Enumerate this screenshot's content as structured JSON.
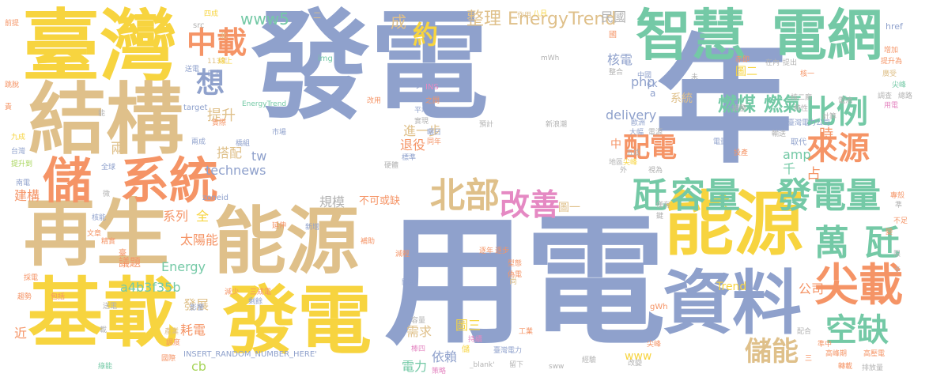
{
  "palette": {
    "blue": "#8fa1cc",
    "tan": "#dfc08a",
    "yellow": "#f7d43f",
    "orange": "#f59466",
    "green": "#74c9a6",
    "pink": "#e589c3",
    "lime": "#a7d55a",
    "grey": "#b2b2b2"
  },
  "words": [
    {
      "text": "發電",
      "color": "blue"
    },
    {
      "text": "年",
      "color": "blue"
    },
    {
      "text": "用電",
      "color": "blue"
    },
    {
      "text": "臺灣",
      "color": "yellow"
    },
    {
      "text": "結構",
      "color": "tan"
    },
    {
      "text": "再生",
      "color": "tan"
    },
    {
      "text": "能源",
      "color": "tan"
    },
    {
      "text": "基載",
      "color": "yellow"
    },
    {
      "text": "發電",
      "color": "yellow"
    },
    {
      "text": "能源",
      "color": "yellow"
    },
    {
      "text": "資料",
      "color": "blue"
    },
    {
      "text": "智慧",
      "color": "green"
    },
    {
      "text": "電網",
      "color": "green"
    },
    {
      "text": "系統",
      "color": "orange"
    },
    {
      "text": "儲",
      "color": "orange"
    },
    {
      "text": "中載",
      "color": "orange"
    },
    {
      "text": "想",
      "color": "blue"
    },
    {
      "text": "約",
      "color": "yellow"
    },
    {
      "text": "比例",
      "color": "green"
    },
    {
      "text": "來源",
      "color": "orange"
    },
    {
      "text": "配電",
      "color": "orange"
    },
    {
      "text": "燃煤",
      "color": "green"
    },
    {
      "text": "燃氣",
      "color": "green"
    },
    {
      "text": "北部",
      "color": "tan"
    },
    {
      "text": "改善",
      "color": "pink"
    },
    {
      "text": "容量",
      "color": "green"
    },
    {
      "text": "瓩",
      "color": "green"
    },
    {
      "text": "發電量",
      "color": "green"
    },
    {
      "text": "萬",
      "color": "green"
    },
    {
      "text": "瓩",
      "color": "green"
    },
    {
      "text": "尖載",
      "color": "orange"
    },
    {
      "text": "空缺",
      "color": "green"
    },
    {
      "text": "儲能",
      "color": "tan"
    },
    {
      "text": "整理",
      "color": "tan"
    },
    {
      "text": "EnergyTrend",
      "color": "tan"
    },
    {
      "text": "成",
      "color": "tan"
    },
    {
      "text": "www5",
      "color": "green"
    },
    {
      "text": "民國",
      "color": "grey"
    },
    {
      "text": "技術",
      "color": "grey"
    },
    {
      "text": "核電",
      "color": "blue"
    },
    {
      "text": "php",
      "color": "blue"
    },
    {
      "text": "delivery",
      "color": "blue"
    },
    {
      "text": "進一步",
      "color": "tan"
    },
    {
      "text": "中",
      "color": "orange"
    },
    {
      "text": "系統",
      "color": "tan"
    },
    {
      "text": "提升",
      "color": "tan"
    },
    {
      "text": "兩",
      "color": "tan"
    },
    {
      "text": "搭配",
      "color": "tan"
    },
    {
      "text": "tw",
      "color": "blue"
    },
    {
      "text": "technews",
      "color": "blue"
    },
    {
      "text": "退役",
      "color": "orange"
    },
    {
      "text": "規模",
      "color": "grey"
    },
    {
      "text": "不可或缺",
      "color": "orange"
    },
    {
      "text": "amp",
      "color": "green"
    },
    {
      "text": "千",
      "color": "green"
    },
    {
      "text": "占",
      "color": "orange"
    },
    {
      "text": "時",
      "color": "orange"
    },
    {
      "text": "建構",
      "color": "orange"
    },
    {
      "text": "系列",
      "color": "orange"
    },
    {
      "text": "全",
      "color": "yellow"
    },
    {
      "text": "太陽能",
      "color": "orange"
    },
    {
      "text": "Energy",
      "color": "green"
    },
    {
      "text": "a4b3f35b",
      "color": "green"
    },
    {
      "text": "發展",
      "color": "tan"
    },
    {
      "text": "耗電",
      "color": "orange"
    },
    {
      "text": "cb",
      "color": "lime"
    },
    {
      "text": "需求",
      "color": "tan"
    },
    {
      "text": "依賴",
      "color": "blue"
    },
    {
      "text": "圖三",
      "color": "yellow"
    },
    {
      "text": "電力",
      "color": "green"
    },
    {
      "text": "www",
      "color": "yellow"
    },
    {
      "text": "Trend",
      "color": "yellow"
    },
    {
      "text": "公司",
      "color": "orange"
    },
    {
      "text": "圖二",
      "color": "yellow"
    },
    {
      "text": "圖一",
      "color": "tan"
    },
    {
      "text": "議題",
      "color": "orange"
    },
    {
      "text": "INSERT_RANDOM_NUMBER_HERE'",
      "color": "blue"
    },
    {
      "text": "zoneid",
      "color": "blue"
    },
    {
      "text": "EnergyTrend",
      "color": "green"
    },
    {
      "text": "href",
      "color": "blue"
    },
    {
      "text": "ck",
      "color": "blue"
    },
    {
      "text": "a",
      "color": "blue"
    },
    {
      "text": "target",
      "color": "blue"
    },
    {
      "text": "img",
      "color": "green"
    },
    {
      "text": "INS",
      "color": "pink"
    },
    {
      "text": "src",
      "color": "grey"
    },
    {
      "text": "_blank'",
      "color": "grey"
    },
    {
      "text": "mWh",
      "color": "grey"
    },
    {
      "text": "gWh",
      "color": "orange"
    },
    {
      "text": "平均值",
      "color": "blue"
    },
    {
      "text": "預計",
      "color": "grey"
    },
    {
      "text": "新浪潮",
      "color": "grey"
    },
    {
      "text": "臺灣電力公司",
      "color": "blue"
    },
    {
      "text": "臺灣電力",
      "color": "blue"
    },
    {
      "text": "歐洲",
      "color": "blue"
    },
    {
      "text": "高峰期",
      "color": "orange"
    },
    {
      "text": "高壓電",
      "color": "orange"
    },
    {
      "text": "排放量",
      "color": "grey"
    },
    {
      "text": "取代",
      "color": "blue"
    },
    {
      "text": "尖峰",
      "color": "orange"
    },
    {
      "text": "調整",
      "color": "grey"
    },
    {
      "text": "113年",
      "color": "tan"
    },
    {
      "text": "日本",
      "color": "blue"
    },
    {
      "text": "四成",
      "color": "yellow"
    },
    {
      "text": "八月",
      "color": "yellow"
    },
    {
      "text": "作用",
      "color": "tan"
    },
    {
      "text": "二",
      "color": "tan"
    },
    {
      "text": "北",
      "color": "tan"
    },
    {
      "text": "前提",
      "color": "orange"
    },
    {
      "text": "九成",
      "color": "yellow"
    },
    {
      "text": "台灣",
      "color": "blue"
    },
    {
      "text": "提升到",
      "color": "lime"
    },
    {
      "text": "兩成",
      "color": "blue"
    },
    {
      "text": "市場",
      "color": "blue"
    },
    {
      "text": "標準",
      "color": "blue"
    },
    {
      "text": "儲",
      "color": "yellow"
    },
    {
      "text": "尚",
      "color": "tan"
    },
    {
      "text": "廣受",
      "color": "tan"
    },
    {
      "text": "三",
      "color": "orange"
    },
    {
      "text": "準中",
      "color": "orange"
    },
    {
      "text": "轉載",
      "color": "orange"
    },
    {
      "text": "配合",
      "color": "grey"
    },
    {
      "text": "改變",
      "color": "grey"
    },
    {
      "text": "留下",
      "color": "grey"
    },
    {
      "text": "經驗",
      "color": "grey"
    },
    {
      "text": "策略",
      "color": "pink"
    },
    {
      "text": "工業",
      "color": "orange"
    },
    {
      "text": "產業",
      "color": "tan"
    },
    {
      "text": "國際",
      "color": "orange"
    },
    {
      "text": "影響",
      "color": "blue"
    },
    {
      "text": "減少",
      "color": "orange"
    },
    {
      "text": "三成電",
      "color": "orange"
    },
    {
      "text": "剩餘",
      "color": "blue"
    },
    {
      "text": "包括",
      "color": "orange"
    },
    {
      "text": "趨勢",
      "color": "orange"
    },
    {
      "text": "綠能",
      "color": "green"
    },
    {
      "text": "全球",
      "color": "blue"
    },
    {
      "text": "文章",
      "color": "orange"
    },
    {
      "text": "南電",
      "color": "blue"
    },
    {
      "text": "新增",
      "color": "blue"
    },
    {
      "text": "補助",
      "color": "orange"
    },
    {
      "text": "逐年",
      "color": "orange"
    },
    {
      "text": "逐步",
      "color": "orange"
    },
    {
      "text": "型態",
      "color": "orange"
    },
    {
      "text": "偽電",
      "color": "orange"
    },
    {
      "text": "關鍵",
      "color": "blue"
    },
    {
      "text": "減輕",
      "color": "orange"
    },
    {
      "text": "容量",
      "color": "grey"
    },
    {
      "text": "棒四",
      "color": "pink"
    },
    {
      "text": "持續",
      "color": "pink"
    },
    {
      "text": "用電",
      "color": "pink"
    },
    {
      "text": "延伸",
      "color": "orange"
    },
    {
      "text": "核能",
      "color": "blue"
    },
    {
      "text": "精實",
      "color": "orange"
    },
    {
      "text": "橋組",
      "color": "blue"
    },
    {
      "text": "尖峰",
      "color": "yellow"
    },
    {
      "text": "送電",
      "color": "blue"
    },
    {
      "text": "外",
      "color": "grey"
    },
    {
      "text": "五成",
      "color": "grey"
    },
    {
      "text": "視為",
      "color": "grey"
    },
    {
      "text": "電量",
      "color": "blue"
    },
    {
      "text": "投產",
      "color": "orange"
    },
    {
      "text": "輸送",
      "color": "grey"
    },
    {
      "text": "特性",
      "color": "grey"
    },
    {
      "text": "核二廠",
      "color": "grey"
    },
    {
      "text": "計算",
      "color": "grey"
    },
    {
      "text": "電池",
      "color": "grey"
    },
    {
      "text": "調查",
      "color": "grey"
    },
    {
      "text": "總路",
      "color": "grey"
    },
    {
      "text": "核一",
      "color": "orange"
    },
    {
      "text": "提出",
      "color": "grey"
    },
    {
      "text": "在內",
      "color": "grey"
    },
    {
      "text": "赤即",
      "color": "orange"
    },
    {
      "text": "增加",
      "color": "orange"
    },
    {
      "text": "提升為",
      "color": "orange"
    },
    {
      "text": "中國",
      "color": "blue"
    },
    {
      "text": "整合",
      "color": "grey"
    },
    {
      "text": "實現",
      "color": "grey"
    },
    {
      "text": "國",
      "color": "orange"
    },
    {
      "text": "之間",
      "color": "orange"
    },
    {
      "text": "同年",
      "color": "orange"
    },
    {
      "text": "硬體",
      "color": "grey"
    },
    {
      "text": "跳脫",
      "color": "orange"
    },
    {
      "text": "責",
      "color": "orange"
    },
    {
      "text": "尖峰",
      "color": "green"
    },
    {
      "text": "改用",
      "color": "orange"
    },
    {
      "text": "不足",
      "color": "orange"
    },
    {
      "text": "僅有",
      "color": "grey"
    },
    {
      "text": "鍵",
      "color": "grey"
    },
    {
      "text": "準",
      "color": "grey"
    },
    {
      "text": "限",
      "color": "grey"
    },
    {
      "text": "變",
      "color": "orange"
    },
    {
      "text": "大幅",
      "color": "blue"
    },
    {
      "text": "電源",
      "color": "grey"
    },
    {
      "text": "專殼",
      "color": "orange"
    },
    {
      "text": "卡",
      "color": "grey"
    },
    {
      "text": "未",
      "color": "grey"
    },
    {
      "text": "地區",
      "color": "grey"
    },
    {
      "text": "微",
      "color": "grey"
    },
    {
      "text": "調度",
      "color": "orange"
    },
    {
      "text": "線上",
      "color": "yellow"
    },
    {
      "text": "臺",
      "color": "orange"
    },
    {
      "text": "能",
      "color": "grey"
    },
    {
      "text": "載",
      "color": "grey"
    },
    {
      "text": "送電",
      "color": "grey"
    },
    {
      "text": "採電",
      "color": "orange"
    },
    {
      "text": "夠",
      "color": "blue"
    },
    {
      "text": "實際",
      "color": "orange"
    },
    {
      "text": "曬日",
      "color": "blue"
    },
    {
      "text": "近",
      "color": "orange"
    },
    {
      "text": "sww",
      "color": "grey"
    }
  ]
}
